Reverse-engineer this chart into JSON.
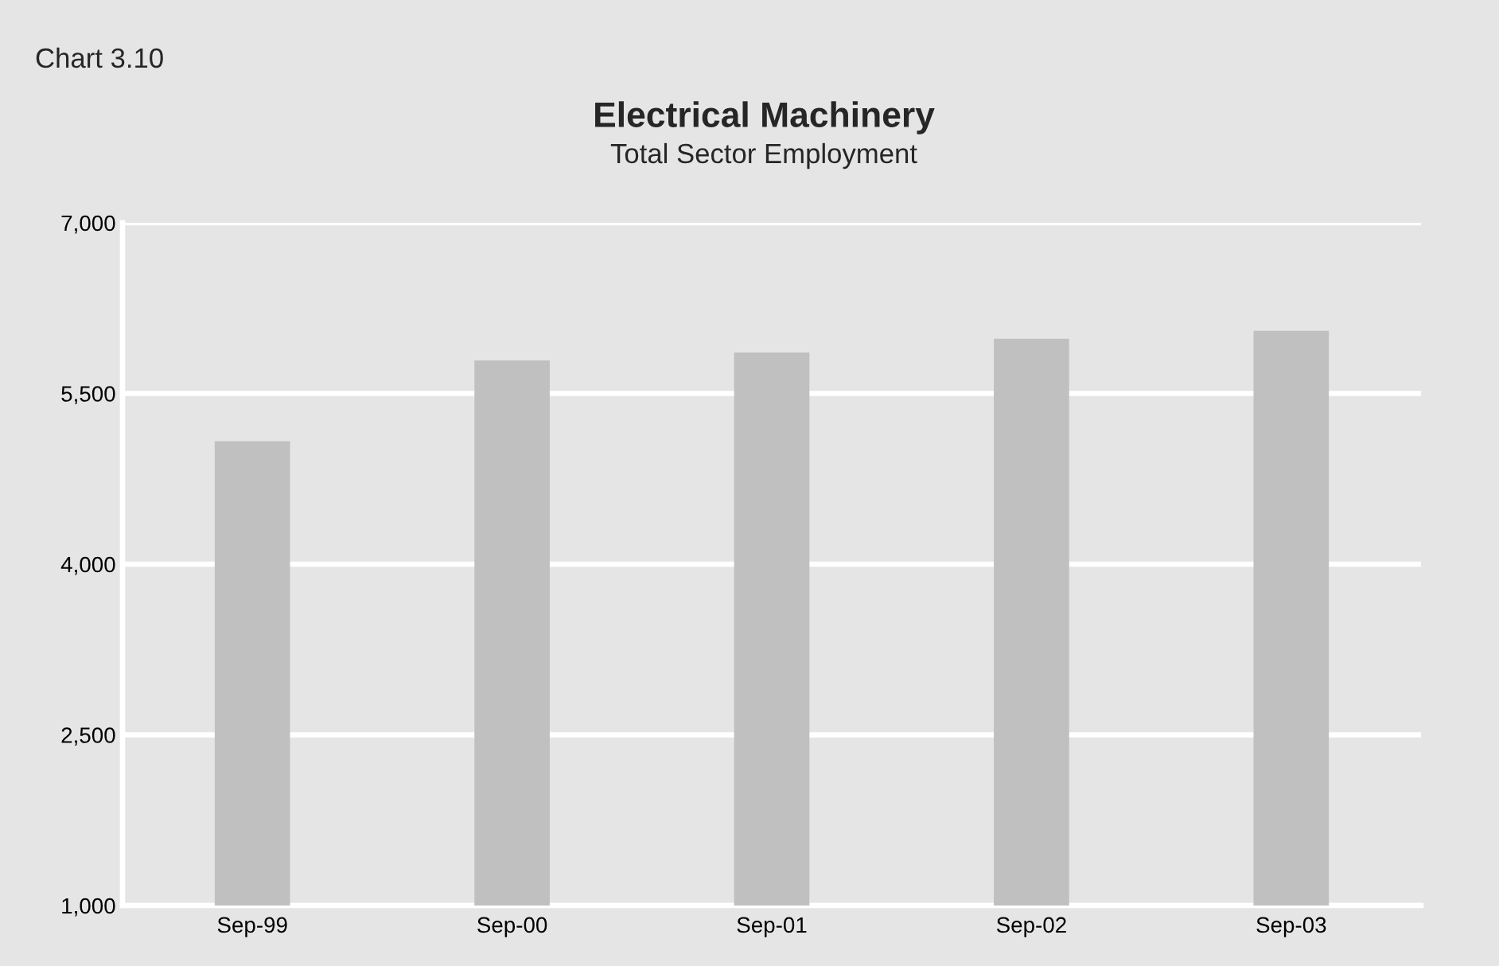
{
  "chart_data": {
    "type": "bar",
    "title": "Electrical Machinery",
    "subtitle": "Total Sector Employment",
    "annotations": [
      "Chart 3.10"
    ],
    "categories": [
      "Sep-99",
      "Sep-00",
      "Sep-01",
      "Sep-02",
      "Sep-03"
    ],
    "values": [
      5080,
      5790,
      5860,
      5980,
      6050
    ],
    "color": "#c0c0c0",
    "ylim": [
      1000,
      7000
    ],
    "yticks": [
      {
        "value": 1000,
        "label": "1,000"
      },
      {
        "value": 2500,
        "label": "2,500"
      },
      {
        "value": 4000,
        "label": "4,000"
      },
      {
        "value": 5500,
        "label": "5,500"
      },
      {
        "value": 7000,
        "label": "7,000"
      }
    ],
    "grid": "y"
  }
}
